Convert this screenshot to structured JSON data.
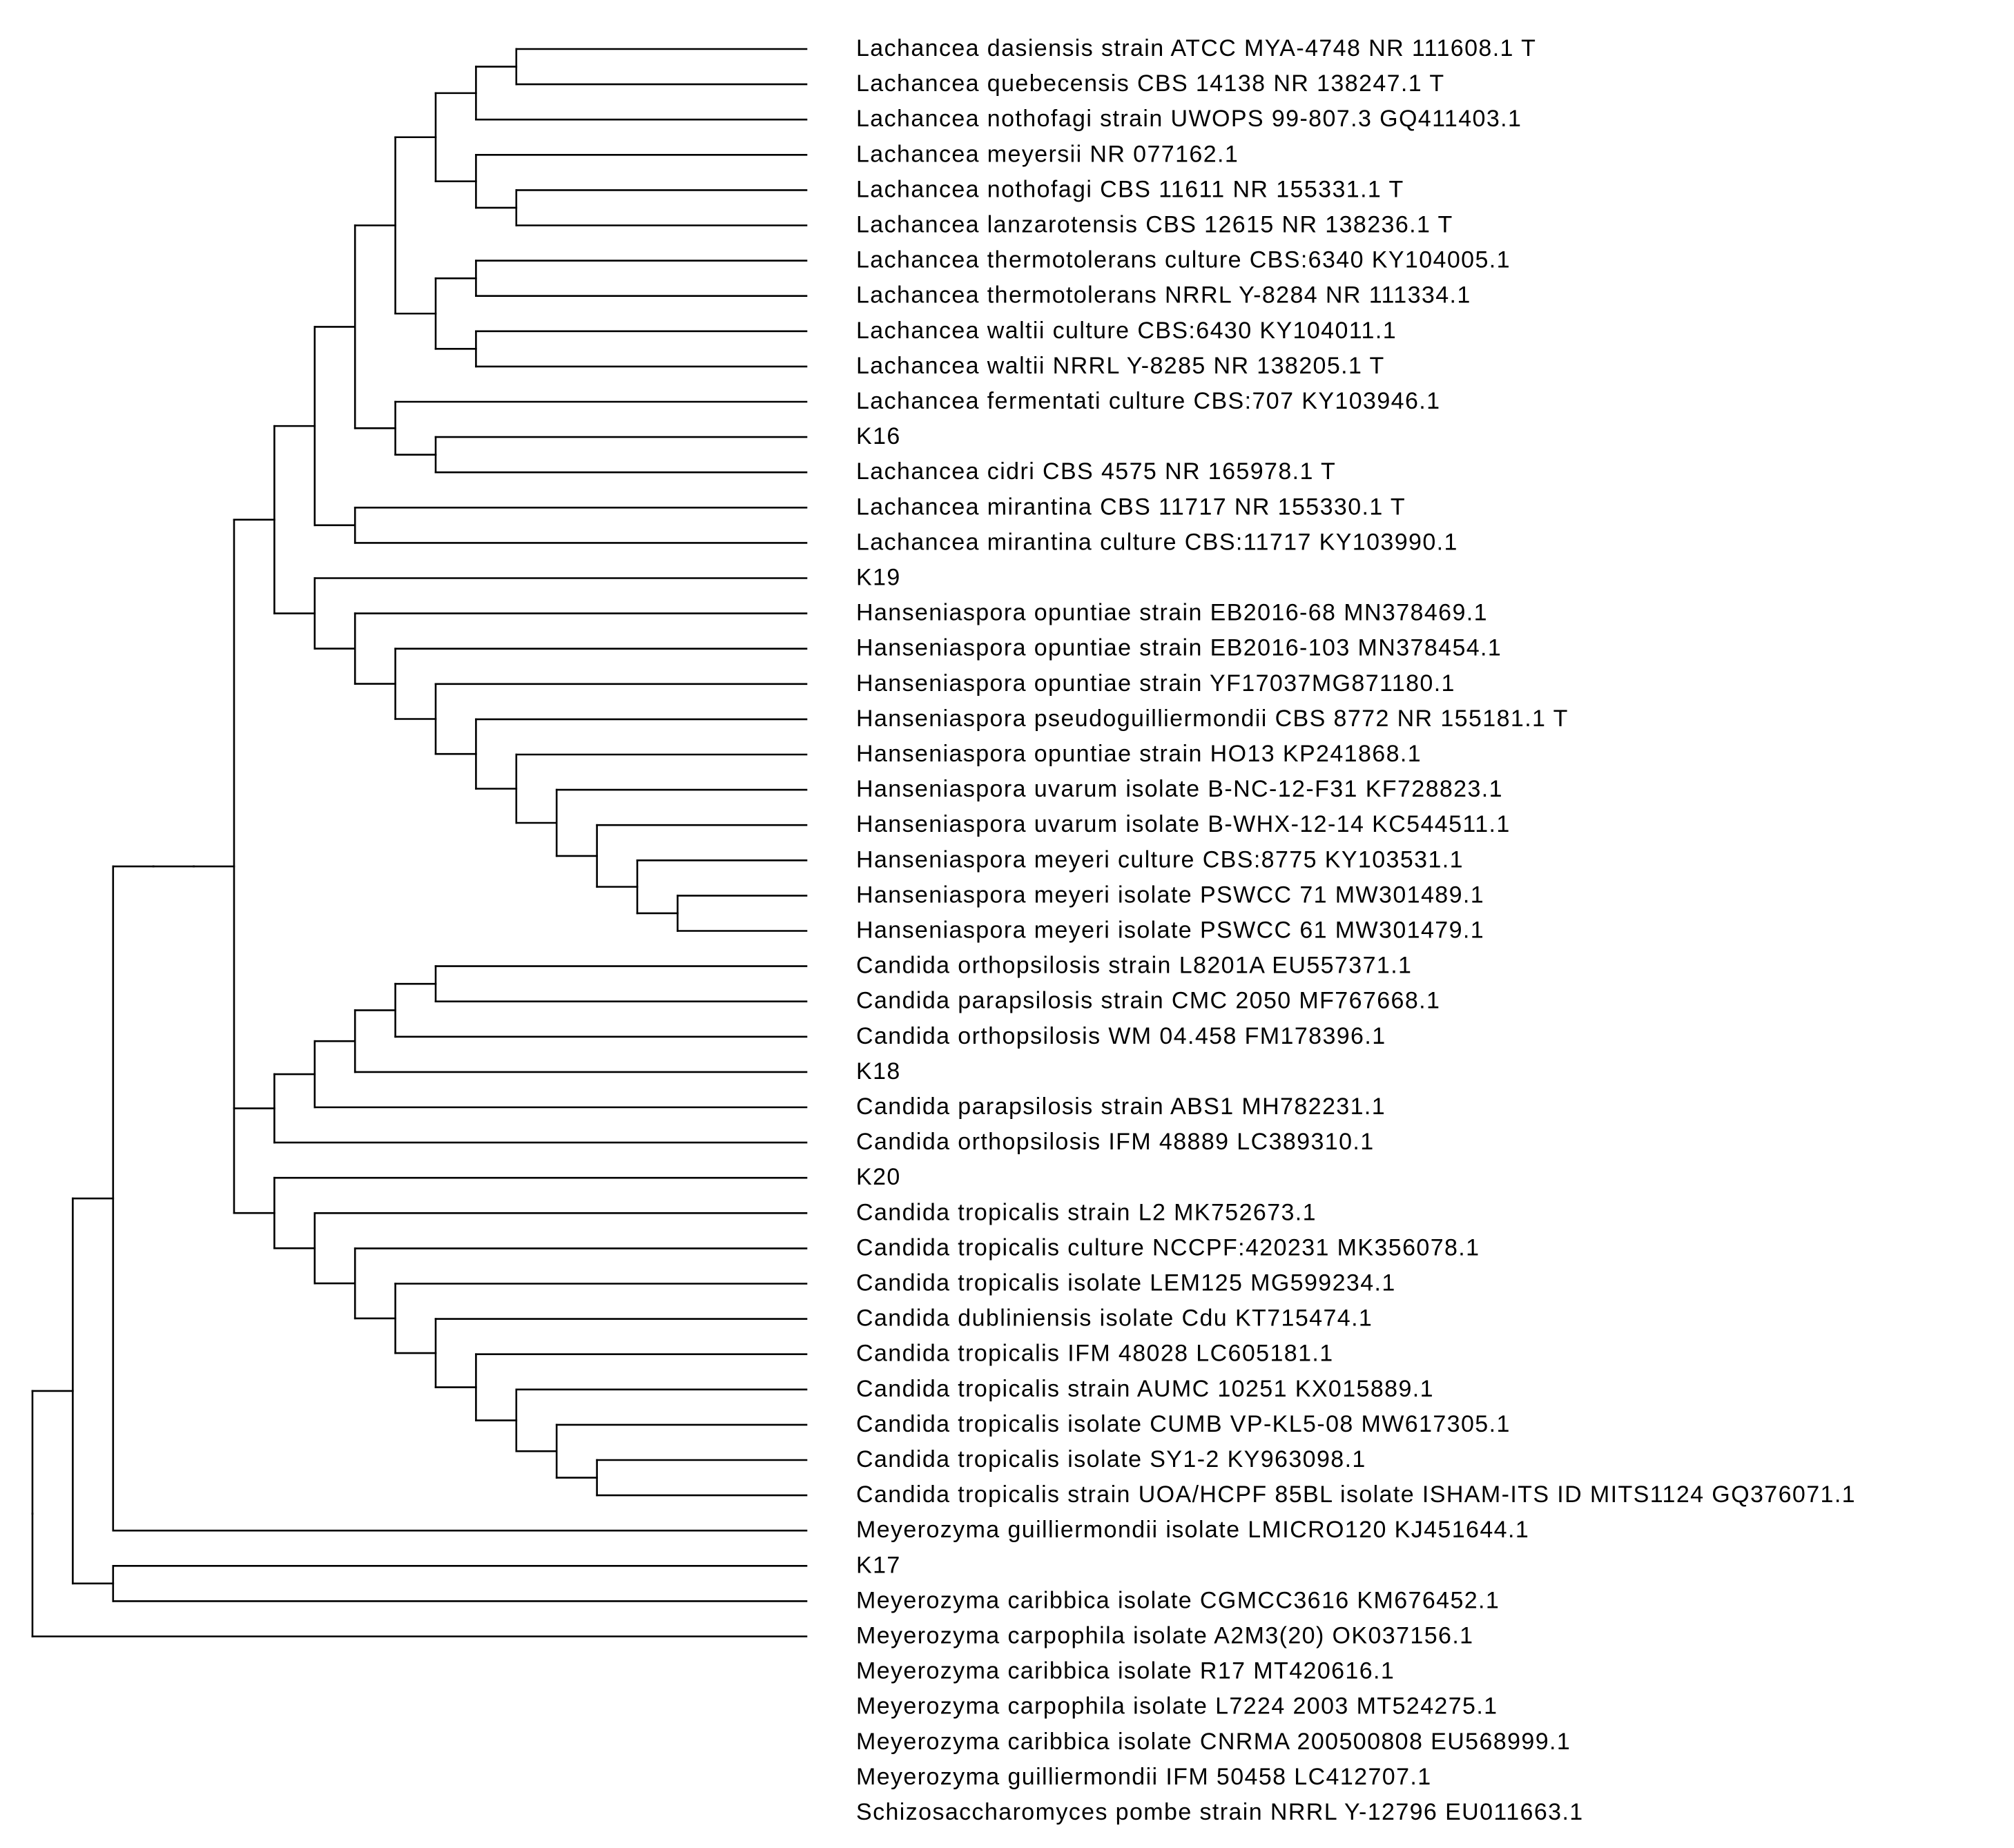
{
  "tree": {
    "type": "phylogenetic-tree",
    "line_color": "#000000",
    "leaves": [
      "Lachancea dasiensis strain ATCC MYA-4748 NR 111608.1 T",
      "Lachancea quebecensis CBS 14138 NR 138247.1 T",
      "Lachancea nothofagi strain UWOPS 99-807.3 GQ411403.1",
      "Lachancea meyersii NR 077162.1",
      "Lachancea nothofagi CBS 11611 NR 155331.1 T",
      "Lachancea lanzarotensis CBS 12615 NR 138236.1 T",
      "Lachancea thermotolerans culture CBS:6340 KY104005.1",
      "Lachancea thermotolerans NRRL Y-8284 NR 111334.1",
      "Lachancea waltii culture CBS:6430 KY104011.1",
      "Lachancea waltii NRRL Y-8285 NR 138205.1 T",
      "Lachancea fermentati culture CBS:707 KY103946.1",
      "K16",
      "Lachancea cidri CBS 4575 NR 165978.1 T",
      "Lachancea mirantina CBS 11717 NR 155330.1 T",
      "Lachancea mirantina culture CBS:11717 KY103990.1",
      "K19",
      "Hanseniaspora opuntiae strain EB2016-68 MN378469.1",
      "Hanseniaspora opuntiae strain EB2016-103 MN378454.1",
      "Hanseniaspora opuntiae strain YF17037MG871180.1",
      "Hanseniaspora pseudoguilliermondii CBS 8772 NR 155181.1 T",
      "Hanseniaspora opuntiae strain HO13 KP241868.1",
      "Hanseniaspora uvarum isolate B-NC-12-F31 KF728823.1",
      "Hanseniaspora uvarum isolate B-WHX-12-14 KC544511.1",
      "Hanseniaspora meyeri culture CBS:8775 KY103531.1",
      "Hanseniaspora meyeri isolate PSWCC 71 MW301489.1",
      "Hanseniaspora meyeri isolate PSWCC 61 MW301479.1",
      "Candida orthopsilosis strain L8201A EU557371.1",
      "Candida parapsilosis strain CMC 2050 MF767668.1",
      "Candida orthopsilosis WM 04.458 FM178396.1",
      "K18",
      "Candida parapsilosis strain ABS1 MH782231.1",
      "Candida orthopsilosis IFM 48889 LC389310.1",
      "K20",
      "Candida tropicalis strain L2 MK752673.1",
      "Candida tropicalis culture NCCPF:420231 MK356078.1",
      "Candida tropicalis isolate LEM125 MG599234.1",
      "Candida dubliniensis isolate Cdu KT715474.1",
      "Candida tropicalis IFM 48028 LC605181.1",
      "Candida tropicalis strain AUMC 10251 KX015889.1",
      "Candida tropicalis isolate CUMB VP-KL5-08 MW617305.1",
      "Candida tropicalis isolate SY1-2 KY963098.1",
      "Candida tropicalis strain UOA/HCPF 85BL isolate ISHAM-ITS ID MITS1124 GQ376071.1",
      "Meyerozyma guilliermondii isolate LMICRO120 KJ451644.1",
      "K17",
      "Meyerozyma caribbica isolate CGMCC3616 KM676452.1",
      "Meyerozyma carpophila isolate A2M3(20) OK037156.1",
      "Meyerozyma caribbica isolate R17 MT420616.1",
      "Meyerozyma carpophila isolate L7224 2003 MT524275.1",
      "Meyerozyma caribbica isolate CNRMA 200500808 EU568999.1",
      "Meyerozyma guilliermondii IFM 50458 LC412707.1",
      "Schizosaccharomyces pombe strain NRRL Y-12796 EU011663.1"
    ],
    "newick": "(((((((((((((0,1),2),(3,(4,5))),((6,7),(8,9))),(10,(11,12))),(13,14)),(15,(16,(17,(18,(19,(20,(21,(22,(23,(24,25))))))))))),(((((26,27),28),29),30),31),(32,(33,(34,(35,(36,(37,(38,(39,(40,41)))))))))))),42),(43,44)),45),46),47),48),49),50)"
  }
}
